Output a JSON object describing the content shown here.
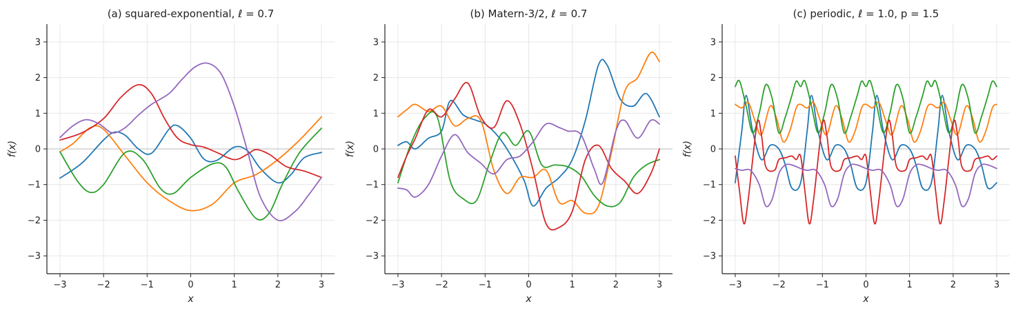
{
  "chart_data": [
    {
      "type": "line",
      "title": "(a) squared-exponential, ℓ = 0.7",
      "xlabel": "x",
      "ylabel": "f(x)",
      "xlim": [
        -3.3,
        3.3
      ],
      "ylim": [
        -3.5,
        3.5
      ],
      "xticks": [
        -3,
        -2,
        -1,
        0,
        1,
        2,
        3
      ],
      "yticks": [
        -3,
        -2,
        -1,
        0,
        1,
        2,
        3
      ],
      "xtick_labels": [
        "−3",
        "−2",
        "−1",
        "0",
        "1",
        "2",
        "3"
      ],
      "ytick_labels": [
        "−3",
        "−2",
        "−1",
        "0",
        "1",
        "2",
        "3"
      ],
      "grid": true,
      "series": [
        {
          "color": "#1f77b4",
          "x": [
            -3,
            -2.5,
            -2,
            -1.75,
            -1.5,
            -1.2,
            -0.9,
            -0.5,
            -0.3,
            0,
            0.3,
            0.6,
            1,
            1.3,
            1.6,
            2,
            2.3,
            2.6,
            3
          ],
          "y": [
            -0.82,
            -0.4,
            0.25,
            0.47,
            0.38,
            0.0,
            -0.12,
            0.55,
            0.65,
            0.3,
            -0.28,
            -0.32,
            0.05,
            -0.05,
            -0.55,
            -0.95,
            -0.72,
            -0.25,
            -0.1
          ]
        },
        {
          "color": "#ff7f0e",
          "x": [
            -3,
            -2.7,
            -2.3,
            -2,
            -1.5,
            -1,
            -0.5,
            0,
            0.5,
            1,
            1.5,
            2,
            2.5,
            3
          ],
          "y": [
            -0.08,
            0.15,
            0.6,
            0.55,
            -0.2,
            -0.95,
            -1.45,
            -1.73,
            -1.55,
            -0.95,
            -0.72,
            -0.3,
            0.25,
            0.9
          ]
        },
        {
          "color": "#2ca02c",
          "x": [
            -3,
            -2.6,
            -2.3,
            -2,
            -1.5,
            -1.1,
            -0.7,
            -0.4,
            0,
            0.5,
            0.8,
            1.1,
            1.5,
            1.8,
            2.1,
            2.5,
            3
          ],
          "y": [
            -0.08,
            -0.9,
            -1.22,
            -1.0,
            -0.1,
            -0.3,
            -1.1,
            -1.25,
            -0.8,
            -0.42,
            -0.5,
            -1.2,
            -1.95,
            -1.8,
            -1.0,
            -0.1,
            0.58
          ]
        },
        {
          "color": "#d62728",
          "x": [
            -3,
            -2.5,
            -2,
            -1.6,
            -1.2,
            -0.9,
            -0.6,
            -0.3,
            0,
            0.3,
            0.6,
            1,
            1.3,
            1.5,
            1.8,
            2.2,
            2.6,
            3
          ],
          "y": [
            0.25,
            0.45,
            0.85,
            1.45,
            1.8,
            1.55,
            0.85,
            0.3,
            0.12,
            0.05,
            -0.1,
            -0.3,
            -0.15,
            -0.02,
            -0.15,
            -0.5,
            -0.62,
            -0.8
          ]
        },
        {
          "color": "#9467bd",
          "x": [
            -3,
            -2.7,
            -2.4,
            -2.1,
            -1.8,
            -1.5,
            -1.2,
            -0.9,
            -0.5,
            -0.2,
            0.1,
            0.4,
            0.7,
            1,
            1.3,
            1.6,
            2,
            2.4,
            2.7,
            3
          ],
          "y": [
            0.32,
            0.65,
            0.82,
            0.7,
            0.45,
            0.6,
            0.95,
            1.25,
            1.55,
            1.95,
            2.3,
            2.4,
            2.1,
            1.2,
            -0.05,
            -1.35,
            -2.0,
            -1.75,
            -1.3,
            -0.8
          ]
        }
      ]
    },
    {
      "type": "line",
      "title": "(b) Matern-3/2, ℓ = 0.7",
      "xlabel": "x",
      "ylabel": "f(x)",
      "xlim": [
        -3.3,
        3.3
      ],
      "ylim": [
        -3.5,
        3.5
      ],
      "xticks": [
        -3,
        -2,
        -1,
        0,
        1,
        2,
        3
      ],
      "yticks": [
        -3,
        -2,
        -1,
        0,
        1,
        2,
        3
      ],
      "xtick_labels": [
        "−3",
        "−2",
        "−1",
        "0",
        "1",
        "2",
        "3"
      ],
      "ytick_labels": [
        "−3",
        "−2",
        "−1",
        "0",
        "1",
        "2",
        "3"
      ],
      "grid": true,
      "series": [
        {
          "color": "#1f77b4",
          "x": [
            -3,
            -2.8,
            -2.6,
            -2.3,
            -2,
            -1.8,
            -1.5,
            -1.2,
            -1,
            -0.7,
            -0.4,
            -0.1,
            0.1,
            0.4,
            0.7,
            1,
            1.3,
            1.6,
            1.8,
            2.1,
            2.4,
            2.7,
            3
          ],
          "y": [
            0.1,
            0.2,
            0.0,
            0.3,
            0.5,
            1.35,
            0.95,
            0.8,
            0.7,
            0.35,
            -0.2,
            -0.9,
            -1.6,
            -1.1,
            -0.8,
            -0.3,
            0.8,
            2.35,
            2.35,
            1.4,
            1.2,
            1.55,
            0.9
          ]
        },
        {
          "color": "#ff7f0e",
          "x": [
            -3,
            -2.8,
            -2.6,
            -2.3,
            -2,
            -1.7,
            -1.4,
            -1.1,
            -0.8,
            -0.5,
            -0.2,
            0.1,
            0.4,
            0.7,
            1,
            1.3,
            1.6,
            1.9,
            2.2,
            2.5,
            2.8,
            3
          ],
          "y": [
            0.9,
            1.1,
            1.25,
            1.05,
            1.2,
            0.65,
            0.85,
            0.8,
            -0.6,
            -1.25,
            -0.8,
            -0.8,
            -0.6,
            -1.5,
            -1.45,
            -1.8,
            -1.6,
            -0.1,
            1.6,
            2.0,
            2.7,
            2.45
          ]
        },
        {
          "color": "#2ca02c",
          "x": [
            -3,
            -2.7,
            -2.4,
            -2.1,
            -1.8,
            -1.5,
            -1.2,
            -0.9,
            -0.6,
            -0.3,
            0,
            0.3,
            0.6,
            0.9,
            1.2,
            1.5,
            1.8,
            2.1,
            2.4,
            2.7,
            3
          ],
          "y": [
            -0.95,
            0.15,
            0.85,
            0.9,
            -0.9,
            -1.4,
            -1.45,
            -0.4,
            0.45,
            0.1,
            0.5,
            -0.45,
            -0.45,
            -0.5,
            -0.75,
            -1.3,
            -1.6,
            -1.5,
            -0.8,
            -0.45,
            -0.3
          ]
        },
        {
          "color": "#d62728",
          "x": [
            -3,
            -2.8,
            -2.6,
            -2.3,
            -2,
            -1.7,
            -1.4,
            -1.1,
            -0.8,
            -0.5,
            -0.2,
            0.1,
            0.4,
            0.7,
            1,
            1.3,
            1.6,
            1.9,
            2.2,
            2.5,
            2.8,
            3
          ],
          "y": [
            -0.8,
            -0.2,
            0.3,
            1.1,
            0.9,
            1.4,
            1.85,
            0.9,
            0.6,
            1.35,
            0.7,
            -0.6,
            -2.1,
            -2.2,
            -1.75,
            -0.3,
            0.1,
            -0.55,
            -0.9,
            -1.25,
            -0.7,
            0.0
          ]
        },
        {
          "color": "#9467bd",
          "x": [
            -3,
            -2.8,
            -2.6,
            -2.3,
            -2,
            -1.7,
            -1.4,
            -1.1,
            -0.8,
            -0.5,
            -0.2,
            0.1,
            0.4,
            0.7,
            0.9,
            1.2,
            1.5,
            1.7,
            2,
            2.2,
            2.5,
            2.8,
            3
          ],
          "y": [
            -1.1,
            -1.15,
            -1.35,
            -1.0,
            -0.2,
            0.4,
            -0.1,
            -0.4,
            -0.7,
            -0.3,
            -0.2,
            0.2,
            0.7,
            0.6,
            0.5,
            0.4,
            -0.55,
            -0.95,
            0.5,
            0.8,
            0.3,
            0.8,
            0.7
          ]
        }
      ]
    },
    {
      "type": "line",
      "title": "(c) periodic, ℓ = 1.0, p = 1.5",
      "xlabel": "x",
      "ylabel": "f(x)",
      "xlim": [
        -3.3,
        3.3
      ],
      "ylim": [
        -3.5,
        3.5
      ],
      "xticks": [
        -3,
        -2,
        -1,
        0,
        1,
        2,
        3
      ],
      "yticks": [
        -3,
        -2,
        -1,
        0,
        1,
        2,
        3
      ],
      "xtick_labels": [
        "−3",
        "−2",
        "−1",
        "0",
        "1",
        "2",
        "3"
      ],
      "ytick_labels": [
        "−3",
        "−2",
        "−1",
        "0",
        "1",
        "2",
        "3"
      ],
      "grid": true,
      "period": 1.5,
      "series": [
        {
          "color": "#1f77b4",
          "x": [
            -3.0,
            -2.85,
            -2.75,
            -2.6,
            -2.4,
            -2.2,
            -2.0,
            -1.85,
            -1.7,
            -1.5
          ],
          "y": [
            -0.95,
            0.5,
            1.5,
            0.5,
            -0.3,
            0.1,
            0.0,
            -0.45,
            -1.1,
            -0.95
          ]
        },
        {
          "color": "#ff7f0e",
          "x": [
            -3.0,
            -2.85,
            -2.7,
            -2.55,
            -2.4,
            -2.2,
            -2.05,
            -1.9,
            -1.75,
            -1.6,
            -1.5
          ],
          "y": [
            1.25,
            1.15,
            1.3,
            0.8,
            0.4,
            1.2,
            0.85,
            0.2,
            0.5,
            1.15,
            1.25
          ]
        },
        {
          "color": "#2ca02c",
          "x": [
            -3.0,
            -2.9,
            -2.75,
            -2.6,
            -2.45,
            -2.3,
            -2.15,
            -2.0,
            -1.85,
            -1.7,
            -1.6,
            -1.5
          ],
          "y": [
            1.75,
            1.9,
            1.2,
            0.45,
            1.0,
            1.8,
            1.4,
            0.45,
            0.9,
            1.5,
            1.9,
            1.75
          ]
        },
        {
          "color": "#d62728",
          "x": [
            -3.0,
            -2.9,
            -2.8,
            -2.7,
            -2.5,
            -2.4,
            -2.3,
            -2.1,
            -2.0,
            -1.85,
            -1.7,
            -1.6,
            -1.5
          ],
          "y": [
            -0.2,
            -1.2,
            -2.1,
            -1.4,
            0.7,
            0.4,
            -0.5,
            -0.6,
            -0.3,
            -0.25,
            -0.2,
            -0.3,
            -0.2
          ]
        },
        {
          "color": "#9467bd",
          "x": [
            -3.0,
            -2.85,
            -2.65,
            -2.45,
            -2.3,
            -2.15,
            -2.0,
            -1.85,
            -1.7,
            -1.5
          ],
          "y": [
            -0.55,
            -0.6,
            -0.6,
            -1.0,
            -1.6,
            -1.4,
            -0.7,
            -0.45,
            -0.45,
            -0.55
          ]
        }
      ]
    }
  ]
}
